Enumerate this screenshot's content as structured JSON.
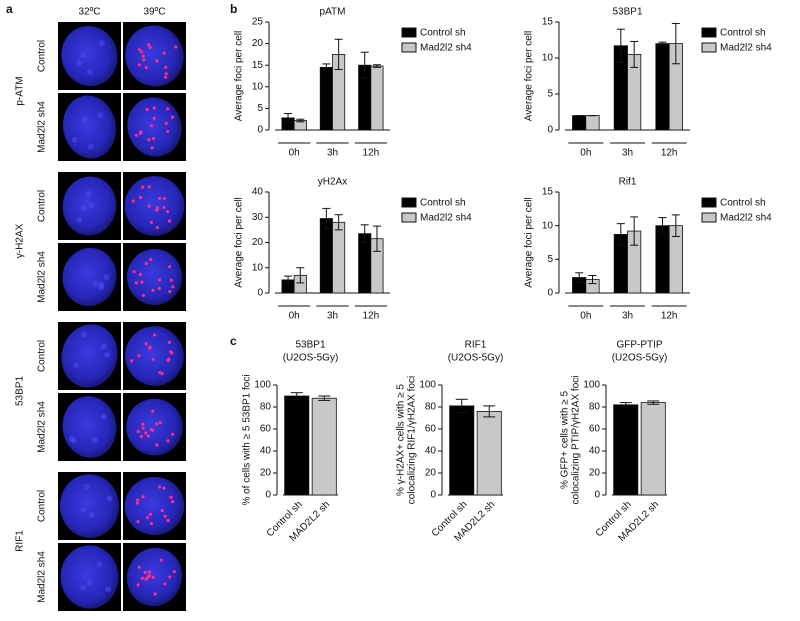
{
  "panel_letters": {
    "a": "a",
    "b": "b",
    "c": "c"
  },
  "panel_a": {
    "columns": [
      "32ºC",
      "39ºC"
    ],
    "groups": [
      {
        "label": "p-ATM",
        "rows": [
          "Control",
          "Mad2l2 sh4"
        ]
      },
      {
        "label": "γ-H2AX",
        "rows": [
          "Control",
          "Mad2l2 sh4"
        ]
      },
      {
        "label": "53BP1",
        "rows": [
          "Control",
          "Mad2l2 sh4"
        ]
      },
      {
        "label": "RIF1",
        "rows": [
          "Control",
          "Mad2l2 sh4"
        ]
      }
    ]
  },
  "chart_data": [
    {
      "type": "bar",
      "title": "pATM",
      "y_label": "Average foci per cell",
      "categories": [
        "0h",
        "3h",
        "12h"
      ],
      "ylim": [
        0,
        25
      ],
      "yticks": [
        0,
        5,
        10,
        15,
        20,
        25
      ],
      "series": [
        {
          "name": "Control sh",
          "color": "#000000",
          "values": [
            2.8,
            14.5,
            15
          ],
          "errors": [
            1,
            0.8,
            3
          ]
        },
        {
          "name": "Mad2l2 sh4",
          "color": "#c8c8c8",
          "values": [
            2.2,
            17.5,
            14.8
          ],
          "errors": [
            0.3,
            3.5,
            0.3
          ]
        }
      ]
    },
    {
      "type": "bar",
      "title": "53BP1",
      "y_label": "Average foci per cell",
      "categories": [
        "0h",
        "3h",
        "12h"
      ],
      "ylim": [
        0,
        15
      ],
      "yticks": [
        0,
        5,
        10,
        15
      ],
      "series": [
        {
          "name": "Control sh",
          "color": "#000000",
          "values": [
            2,
            11.7,
            12
          ],
          "errors": [
            0,
            2.3,
            0.2
          ]
        },
        {
          "name": "Mad2l2 sh4",
          "color": "#c8c8c8",
          "values": [
            2,
            10.5,
            12
          ],
          "errors": [
            0,
            1.8,
            2.8
          ]
        }
      ]
    },
    {
      "type": "bar",
      "title": "yH2Ax",
      "y_label": "Average foci per cell",
      "categories": [
        "0h",
        "3h",
        "12h"
      ],
      "ylim": [
        0,
        40
      ],
      "yticks": [
        0,
        10,
        20,
        30,
        40
      ],
      "series": [
        {
          "name": "Control sh",
          "color": "#000000",
          "values": [
            5.2,
            29.5,
            23.5
          ],
          "errors": [
            1.5,
            4,
            3.5
          ]
        },
        {
          "name": "Mad2l2 sh4",
          "color": "#c8c8c8",
          "values": [
            7,
            28,
            21.5
          ],
          "errors": [
            3,
            3,
            5
          ]
        }
      ]
    },
    {
      "type": "bar",
      "title": "Rif1",
      "y_label": "Average foci per cell",
      "categories": [
        "0h",
        "3h",
        "12h"
      ],
      "ylim": [
        0,
        15
      ],
      "yticks": [
        0,
        5,
        10,
        15
      ],
      "series": [
        {
          "name": "Control sh",
          "color": "#000000",
          "values": [
            2.3,
            8.7,
            10
          ],
          "errors": [
            0.7,
            1.6,
            1.2
          ]
        },
        {
          "name": "Mad2l2 sh4",
          "color": "#c8c8c8",
          "values": [
            2,
            9.2,
            10
          ],
          "errors": [
            0.6,
            2.1,
            1.6
          ]
        }
      ]
    },
    {
      "type": "bar",
      "title": [
        "53BP1",
        "(U2OS-5Gy)"
      ],
      "y_label": [
        "% of cells with ≥ 5 53BP1 foci"
      ],
      "categories": [
        "Control sh",
        "MAD2L2 sh"
      ],
      "values": [
        90,
        88
      ],
      "errors": [
        3,
        2
      ],
      "colors": [
        "#000000",
        "#c8c8c8"
      ],
      "ylim": [
        0,
        100
      ],
      "yticks": [
        0,
        20,
        40,
        60,
        80,
        100
      ]
    },
    {
      "type": "bar",
      "title": [
        "RIF1",
        "(U2OS-5Gy)"
      ],
      "y_label": [
        "% γ-H2AX+ cells with ≥ 5",
        "colocalizing RIF1/γH2AX foci"
      ],
      "categories": [
        "Control sh",
        "MAD2L2 sh"
      ],
      "values": [
        81,
        76
      ],
      "errors": [
        6,
        5
      ],
      "colors": [
        "#000000",
        "#c8c8c8"
      ],
      "ylim": [
        0,
        100
      ],
      "yticks": [
        0,
        20,
        40,
        60,
        80,
        100
      ]
    },
    {
      "type": "bar",
      "title": [
        "GFP-PTIP",
        "(U2OS-5Gy)"
      ],
      "y_label": [
        "% GFP+ cells with ≥ 5",
        "colocalizing PTIP/γH2AX foci"
      ],
      "categories": [
        "Control sh",
        "MAD2L2 sh"
      ],
      "values": [
        82,
        84
      ],
      "errors": [
        2,
        1.5
      ],
      "colors": [
        "#000000",
        "#c8c8c8"
      ],
      "ylim": [
        0,
        100
      ],
      "yticks": [
        0,
        20,
        40,
        60,
        80,
        100
      ]
    }
  ]
}
